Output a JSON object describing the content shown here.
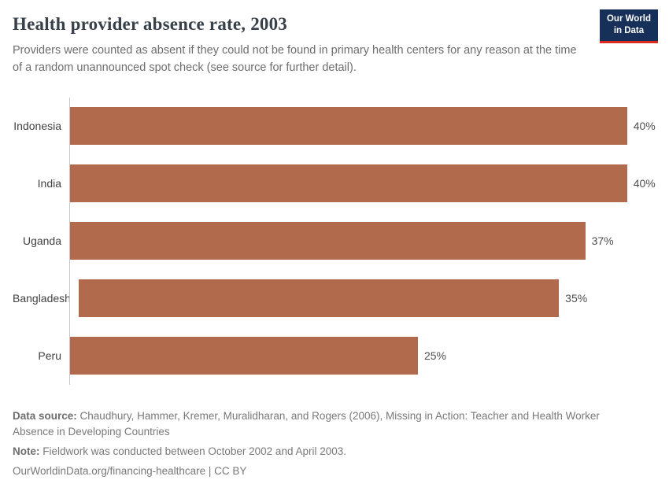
{
  "logo": {
    "line1": "Our World",
    "line2": "in Data"
  },
  "header": {
    "title": "Health provider absence rate, 2003",
    "subtitle": "Providers were counted as absent if they could not be found in primary health centers for any reason at the time of a random unannounced spot check (see source for further detail)."
  },
  "chart_data": {
    "type": "bar",
    "orientation": "horizontal",
    "title": "Health provider absence rate, 2003",
    "categories": [
      "Indonesia",
      "India",
      "Uganda",
      "Bangladesh",
      "Peru"
    ],
    "values": [
      40,
      40,
      37,
      35,
      25
    ],
    "value_labels": [
      "40%",
      "40%",
      "37%",
      "35%",
      "25%"
    ],
    "xlim": [
      0,
      40
    ],
    "bar_color": "#b16a4c",
    "axis_line_color": "#c3c7ca",
    "grid": false,
    "legend": false
  },
  "footer": {
    "source_label": "Data source:",
    "source_text": "Chaudhury, Hammer, Kremer, Muralidharan, and Rogers (2006), Missing in Action: Teacher and Health Worker Absence in Developing Countries",
    "note_label": "Note:",
    "note_text": "Fieldwork was conducted between October 2002 and April 2003.",
    "url": "OurWorldinData.org/financing-healthcare | CC BY"
  }
}
